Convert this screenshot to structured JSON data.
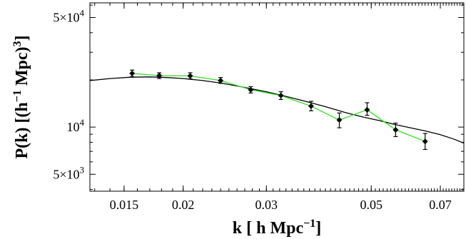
{
  "chart_data": {
    "type": "scatter",
    "xscale": "log",
    "yscale": "log",
    "xlim": [
      0.0127,
      0.0785
    ],
    "ylim": [
      3900,
      62000
    ],
    "xticks": [
      {
        "value": 0.015,
        "label": "0.015"
      },
      {
        "value": 0.02,
        "label": "0.02"
      },
      {
        "value": 0.03,
        "label": "0.03"
      },
      {
        "value": 0.05,
        "label": "0.05"
      },
      {
        "value": 0.07,
        "label": "0.07"
      }
    ],
    "yticks": [
      {
        "value": 5000,
        "mantissa": "5×10",
        "exp": "3"
      },
      {
        "value": 10000,
        "mantissa": "10",
        "exp": "4"
      },
      {
        "value": 50000,
        "mantissa": "5×10",
        "exp": "4"
      }
    ],
    "xlabel": {
      "pre": "k [ h Mpc",
      "sup": "−1",
      "post": "]"
    },
    "ylabel": {
      "pre": "P(k) [(h",
      "sup1": "−1",
      "mid": " Mpc)",
      "sup2": "3",
      "post": "]"
    },
    "series": [
      {
        "kind": "points-with-errors",
        "color": "#33dd22",
        "points": [
          {
            "x": 0.0156,
            "y": 22000,
            "ylo": 21000,
            "yhi": 23100
          },
          {
            "x": 0.0178,
            "y": 21300,
            "ylo": 20400,
            "yhi": 22200
          },
          {
            "x": 0.0207,
            "y": 21200,
            "ylo": 20300,
            "yhi": 22200
          },
          {
            "x": 0.024,
            "y": 19800,
            "ylo": 19000,
            "yhi": 20700
          },
          {
            "x": 0.0278,
            "y": 17300,
            "ylo": 16500,
            "yhi": 18100
          },
          {
            "x": 0.0322,
            "y": 15900,
            "ylo": 15000,
            "yhi": 16800
          },
          {
            "x": 0.0373,
            "y": 13600,
            "ylo": 12700,
            "yhi": 14600
          },
          {
            "x": 0.0428,
            "y": 11100,
            "ylo": 9900,
            "yhi": 12300
          },
          {
            "x": 0.049,
            "y": 12900,
            "ylo": 11900,
            "yhi": 14300
          },
          {
            "x": 0.0563,
            "y": 9600,
            "ylo": 8700,
            "yhi": 10600
          },
          {
            "x": 0.065,
            "y": 8100,
            "ylo": 7200,
            "yhi": 9100
          }
        ]
      },
      {
        "kind": "model-curve",
        "color": "#000000",
        "x": [
          0.0127,
          0.014,
          0.0155,
          0.017,
          0.0185,
          0.02,
          0.022,
          0.024,
          0.026,
          0.028,
          0.03,
          0.033,
          0.036,
          0.04,
          0.044,
          0.048,
          0.052,
          0.056,
          0.06,
          0.065,
          0.07,
          0.075,
          0.0785
        ],
        "y": [
          19800,
          20400,
          20800,
          20900,
          20700,
          20400,
          19800,
          19100,
          18300,
          17500,
          16800,
          15700,
          14700,
          13500,
          12400,
          11600,
          11000,
          10400,
          9950,
          9450,
          8950,
          8350,
          7900
        ]
      }
    ]
  }
}
